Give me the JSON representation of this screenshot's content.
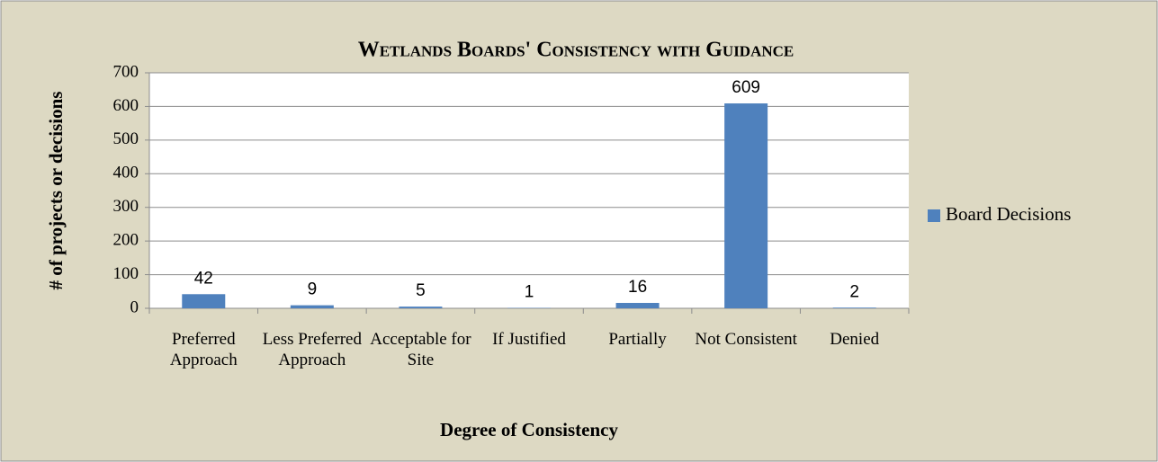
{
  "chart_data": {
    "type": "bar",
    "title": "Wetlands Boards' Consistency with Guidance",
    "categories": [
      "Preferred Approach",
      "Less Preferred Approach",
      "Acceptable for Site",
      "If Justified",
      "Partially",
      "Not Consistent",
      "Denied"
    ],
    "series": [
      {
        "name": "Board Decisions",
        "color": "#4f81bd",
        "values": [
          42,
          9,
          5,
          1,
          16,
          609,
          2
        ]
      }
    ],
    "x_label": "Degree of Consistency",
    "y_label": "# of projects or decisions",
    "ylim": [
      0,
      700
    ],
    "yticks": [
      0,
      100,
      200,
      300,
      400,
      500,
      600,
      700
    ],
    "grid": true,
    "legend": "right"
  }
}
